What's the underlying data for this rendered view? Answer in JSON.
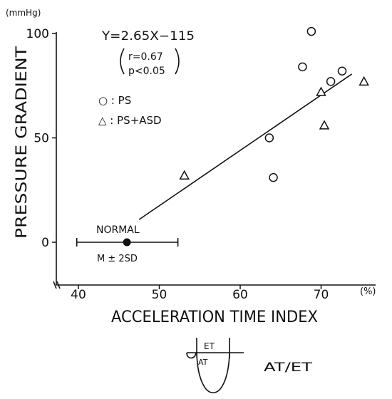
{
  "chart_data": {
    "type": "scatter",
    "unit_label": "(mmHg)",
    "ylabel": "PRESSURE GRADIENT",
    "xlabel": "ACCELERATION TIME INDEX",
    "x_unit": "(%)",
    "xlim": [
      39,
      75
    ],
    "ylim": [
      -17,
      100
    ],
    "x_ticks": [
      40,
      50,
      60,
      70
    ],
    "y_ticks": [
      0,
      50,
      100
    ],
    "grid": false,
    "legend_position": "top-left",
    "series": [
      {
        "name": "PS",
        "marker": "circle",
        "points": [
          {
            "x": 63.6,
            "y": 50
          },
          {
            "x": 64.1,
            "y": 31
          },
          {
            "x": 67.7,
            "y": 84
          },
          {
            "x": 68.8,
            "y": 101
          },
          {
            "x": 71.2,
            "y": 77
          },
          {
            "x": 72.6,
            "y": 82
          }
        ]
      },
      {
        "name": "PS+ASD",
        "marker": "triangle",
        "points": [
          {
            "x": 53.1,
            "y": 32
          },
          {
            "x": 70.0,
            "y": 72
          },
          {
            "x": 70.4,
            "y": 56
          },
          {
            "x": 75.3,
            "y": 77
          }
        ]
      }
    ],
    "regression": {
      "equation": "Y=2.65X−115",
      "r": "r=0.67",
      "p": "p<0.05",
      "x_from": 47.5,
      "x_to": 73.8
    },
    "normal": {
      "label": "NORMAL",
      "range_label": "M ± 2SD",
      "mean": 46,
      "low": 39.8,
      "high": 52.3,
      "y": 0
    },
    "legend": {
      "ps": "○ : PS",
      "ps_asd": "△ : PS+ASD"
    },
    "inset": {
      "et": "ET",
      "at": "AT",
      "ratio_label": "AT/ET"
    }
  }
}
